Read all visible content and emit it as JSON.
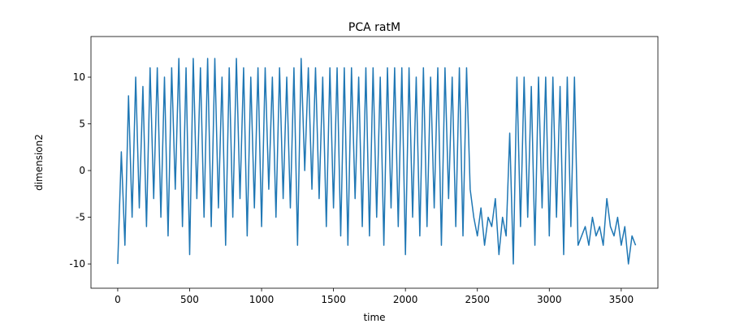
{
  "chart_data": {
    "type": "line",
    "title": "PCA ratM",
    "x_label": "time",
    "y_label": "dimension2",
    "color": "#1f77b4",
    "grid": false,
    "x": [
      0,
      25,
      50,
      75,
      100,
      125,
      150,
      175,
      200,
      225,
      250,
      275,
      300,
      325,
      350,
      375,
      400,
      425,
      450,
      475,
      500,
      525,
      550,
      575,
      600,
      625,
      650,
      675,
      700,
      725,
      750,
      775,
      800,
      825,
      850,
      875,
      900,
      925,
      950,
      975,
      1000,
      1025,
      1050,
      1075,
      1100,
      1125,
      1150,
      1175,
      1200,
      1225,
      1250,
      1275,
      1300,
      1325,
      1350,
      1375,
      1400,
      1425,
      1450,
      1475,
      1500,
      1525,
      1550,
      1575,
      1600,
      1625,
      1650,
      1675,
      1700,
      1725,
      1750,
      1775,
      1800,
      1825,
      1850,
      1875,
      1900,
      1925,
      1950,
      1975,
      2000,
      2025,
      2050,
      2075,
      2100,
      2125,
      2150,
      2175,
      2200,
      2225,
      2250,
      2275,
      2300,
      2325,
      2350,
      2375,
      2400,
      2425,
      2450,
      2475,
      2500,
      2525,
      2550,
      2575,
      2600,
      2625,
      2650,
      2675,
      2700,
      2725,
      2750,
      2775,
      2800,
      2825,
      2850,
      2875,
      2900,
      2925,
      2950,
      2975,
      3000,
      3025,
      3050,
      3075,
      3100,
      3125,
      3150,
      3175,
      3200,
      3225,
      3250,
      3275,
      3300,
      3325,
      3350,
      3375,
      3400,
      3425,
      3450,
      3475,
      3500,
      3525,
      3550,
      3575,
      3600
    ],
    "values": [
      -10,
      2,
      -8,
      8,
      -5,
      10,
      -4,
      9,
      -6,
      11,
      -3,
      11,
      -5,
      10,
      -7,
      11,
      -2,
      12,
      -6,
      11,
      -9,
      12,
      -3,
      11,
      -5,
      12,
      -6,
      12,
      -4,
      10,
      -8,
      11,
      -5,
      12,
      -3,
      11,
      -7,
      10,
      -4,
      11,
      -6,
      11,
      -2,
      10,
      -5,
      11,
      -3,
      10,
      -4,
      11,
      -8,
      12,
      0,
      11,
      -2,
      11,
      -3,
      10,
      -6,
      11,
      -4,
      11,
      -7,
      11,
      -8,
      11,
      -3,
      10,
      -6,
      11,
      -7,
      11,
      -5,
      10,
      -8,
      11,
      -4,
      11,
      -6,
      11,
      -9,
      11,
      -5,
      10,
      -7,
      11,
      -6,
      10,
      -4,
      11,
      -8,
      11,
      -3,
      10,
      -6,
      11,
      -7,
      11,
      -2,
      -5,
      -7,
      -4,
      -8,
      -5,
      -6,
      -3,
      -9,
      -5,
      -7,
      4,
      -10,
      10,
      -6,
      10,
      -5,
      9,
      -8,
      10,
      -4,
      10,
      -7,
      10,
      -5,
      9,
      -9,
      10,
      -6,
      10,
      -8,
      -7,
      -6,
      -8,
      -5,
      -7,
      -6,
      -8,
      -3,
      -6,
      -7,
      -5,
      -8,
      -6,
      -10,
      -7,
      -8
    ],
    "xlim": [
      -186,
      3755
    ],
    "ylim": [
      -12.6,
      14.35
    ],
    "xticks": [
      0,
      500,
      1000,
      1500,
      2000,
      2500,
      3000,
      3500
    ],
    "yticks": [
      -10,
      -5,
      0,
      5,
      10
    ]
  }
}
